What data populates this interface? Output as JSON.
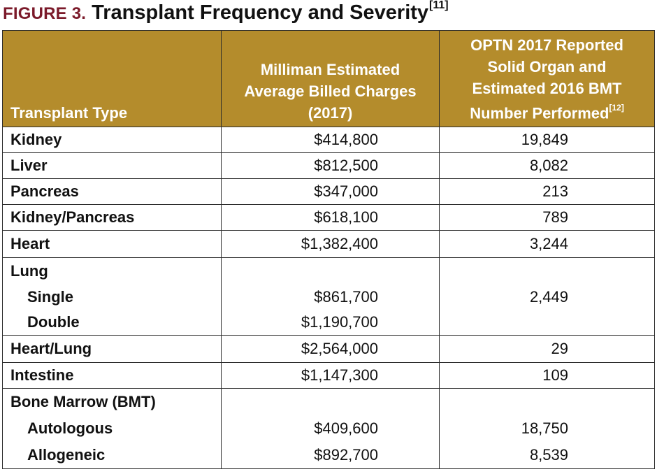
{
  "figure": {
    "label": "FIGURE 3.",
    "title": "Transplant Frequency and Severity",
    "title_ref": "[11]"
  },
  "table": {
    "headers": {
      "type": "Transplant Type",
      "charges_line1": "Milliman Estimated",
      "charges_line2": "Average Billed Charges",
      "charges_line3": "(2017)",
      "count_line1": "OPTN 2017 Reported",
      "count_line2": "Solid Organ and",
      "count_line3": "Estimated 2016 BMT",
      "count_line4": "Number Performed",
      "count_ref": "[12]"
    },
    "rows": [
      {
        "type": "Kidney",
        "charges": "$414,800",
        "count": "19,849"
      },
      {
        "type": "Liver",
        "charges": "$812,500",
        "count": "8,082"
      },
      {
        "type": "Pancreas",
        "charges": "$347,000",
        "count": "213"
      },
      {
        "type": "Kidney/Pancreas",
        "charges": "$618,100",
        "count": "789"
      },
      {
        "type": "Heart",
        "charges": "$1,382,400",
        "count": "3,244"
      },
      {
        "type": "Lung",
        "charges": "",
        "count": ""
      },
      {
        "type": "Single",
        "charges": "$861,700",
        "count": "2,449"
      },
      {
        "type": "Double",
        "charges": "$1,190,700",
        "count": ""
      },
      {
        "type": "Heart/Lung",
        "charges": "$2,564,000",
        "count": "29"
      },
      {
        "type": "Intestine",
        "charges": "$1,147,300",
        "count": "109"
      },
      {
        "type": "Bone Marrow (BMT)",
        "charges": "",
        "count": ""
      },
      {
        "type": "Autologous",
        "charges": "$409,600",
        "count": "18,750"
      },
      {
        "type": "Allogeneic",
        "charges": "$892,700",
        "count": "8,539"
      }
    ]
  },
  "colors": {
    "label_maroon": "#7b1a2a",
    "header_gold": "#b48c2c",
    "border": "#2b2b2b"
  }
}
